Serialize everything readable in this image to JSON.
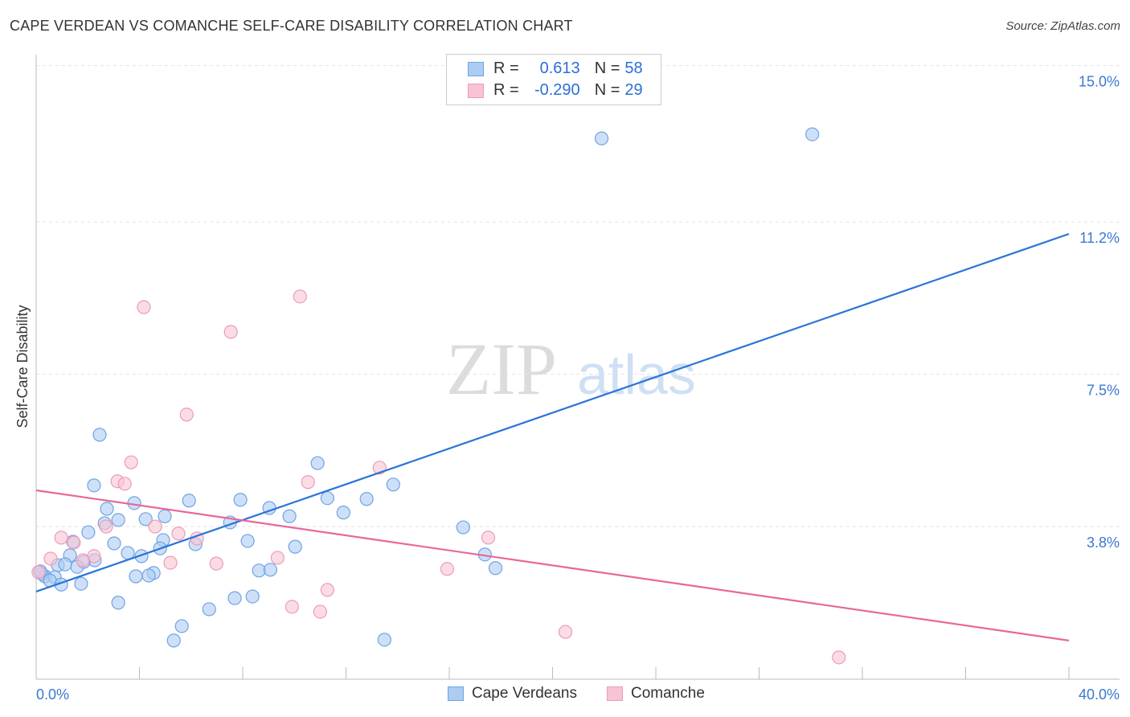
{
  "chart_data": {
    "type": "scatter",
    "title": "CAPE VERDEAN VS COMANCHE SELF-CARE DISABILITY CORRELATION CHART",
    "source": "Source: ZipAtlas.com",
    "ylabel": "Self-Care Disability",
    "xlabel": "",
    "xlim": [
      0,
      40
    ],
    "ylim": [
      0,
      15
    ],
    "x_tick_labels": [
      "0.0%",
      "40.0%"
    ],
    "y_ticks": [
      15.0,
      11.2,
      7.5,
      3.8
    ],
    "y_tick_labels": [
      "15.0%",
      "11.2%",
      "7.5%",
      "3.8%"
    ],
    "grid": true,
    "watermark": "ZIPatlas",
    "legend": {
      "placement": "top-center",
      "rows": [
        {
          "r_label": "R =",
          "r": "0.613",
          "n_label": "N =",
          "n": "58"
        },
        {
          "r_label": "R =",
          "r": "-0.290",
          "n_label": "N =",
          "n": "29"
        }
      ]
    },
    "series": [
      {
        "name": "Cape Verdeans",
        "color": "#6fa3e6",
        "fill": "#aecbf2",
        "line_color": "#2a74d8",
        "trend": {
          "x": [
            0,
            40
          ],
          "y": [
            2.22,
            10.91
          ]
        },
        "points": [
          [
            21.9,
            13.23
          ],
          [
            30.06,
            13.33
          ],
          [
            2.46,
            6.03
          ],
          [
            10.9,
            5.34
          ],
          [
            13.83,
            4.82
          ],
          [
            2.24,
            4.8
          ],
          [
            7.91,
            4.45
          ],
          [
            5.92,
            4.43
          ],
          [
            11.28,
            4.49
          ],
          [
            12.8,
            4.47
          ],
          [
            3.8,
            4.37
          ],
          [
            9.03,
            4.25
          ],
          [
            2.74,
            4.23
          ],
          [
            11.9,
            4.14
          ],
          [
            9.81,
            4.05
          ],
          [
            4.98,
            4.05
          ],
          [
            4.24,
            3.98
          ],
          [
            3.18,
            3.96
          ],
          [
            2.65,
            3.88
          ],
          [
            16.54,
            3.78
          ],
          [
            7.51,
            3.9
          ],
          [
            2.02,
            3.66
          ],
          [
            8.19,
            3.45
          ],
          [
            3.02,
            3.39
          ],
          [
            4.92,
            3.47
          ],
          [
            1.43,
            3.43
          ],
          [
            6.17,
            3.37
          ],
          [
            10.03,
            3.31
          ],
          [
            4.8,
            3.27
          ],
          [
            3.55,
            3.16
          ],
          [
            4.08,
            3.08
          ],
          [
            1.31,
            3.1
          ],
          [
            17.38,
            3.12
          ],
          [
            2.27,
            2.98
          ],
          [
            1.84,
            2.94
          ],
          [
            0.84,
            2.86
          ],
          [
            1.12,
            2.88
          ],
          [
            1.59,
            2.82
          ],
          [
            17.79,
            2.79
          ],
          [
            8.63,
            2.73
          ],
          [
            9.07,
            2.75
          ],
          [
            4.55,
            2.67
          ],
          [
            3.86,
            2.59
          ],
          [
            4.36,
            2.61
          ],
          [
            0.34,
            2.59
          ],
          [
            0.22,
            2.65
          ],
          [
            0.72,
            2.57
          ],
          [
            0.53,
            2.49
          ],
          [
            1.74,
            2.41
          ],
          [
            0.97,
            2.39
          ],
          [
            3.18,
            1.95
          ],
          [
            8.38,
            2.1
          ],
          [
            7.69,
            2.06
          ],
          [
            6.7,
            1.79
          ],
          [
            5.64,
            1.38
          ],
          [
            5.33,
            1.03
          ],
          [
            13.49,
            1.05
          ],
          [
            0.16,
            2.71
          ]
        ]
      },
      {
        "name": "Comanche",
        "color": "#ee9ab6",
        "fill": "#f8c4d4",
        "line_color": "#e8679a",
        "trend": {
          "x": [
            0,
            40
          ],
          "y": [
            4.68,
            1.03
          ]
        },
        "points": [
          [
            10.22,
            9.39
          ],
          [
            4.17,
            9.13
          ],
          [
            7.54,
            8.53
          ],
          [
            5.83,
            6.52
          ],
          [
            3.68,
            5.36
          ],
          [
            13.3,
            5.23
          ],
          [
            3.15,
            4.9
          ],
          [
            3.43,
            4.84
          ],
          [
            10.53,
            4.88
          ],
          [
            4.61,
            3.8
          ],
          [
            2.71,
            3.8
          ],
          [
            5.51,
            3.63
          ],
          [
            6.23,
            3.51
          ],
          [
            17.51,
            3.53
          ],
          [
            0.97,
            3.53
          ],
          [
            1.46,
            3.41
          ],
          [
            2.24,
            3.08
          ],
          [
            0.56,
            3.02
          ],
          [
            1.81,
            2.98
          ],
          [
            5.2,
            2.92
          ],
          [
            9.35,
            3.04
          ],
          [
            6.98,
            2.9
          ],
          [
            15.92,
            2.77
          ],
          [
            11.28,
            2.26
          ],
          [
            9.91,
            1.85
          ],
          [
            11.0,
            1.73
          ],
          [
            20.5,
            1.24
          ],
          [
            31.09,
            0.62
          ],
          [
            0.09,
            2.69
          ]
        ]
      }
    ]
  }
}
